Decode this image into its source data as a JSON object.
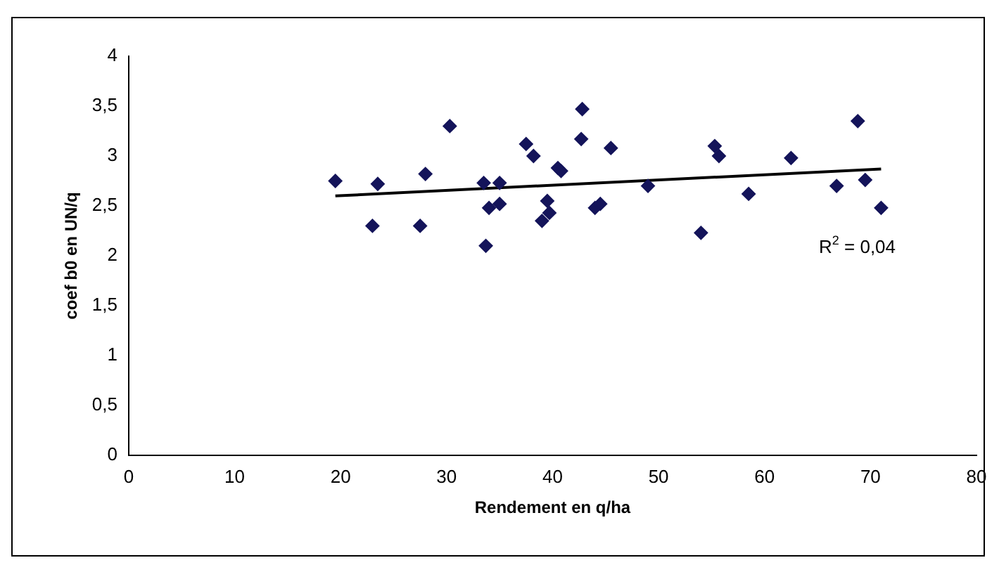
{
  "chart_data": {
    "type": "scatter",
    "xlabel": "Rendement en q/ha",
    "ylabel": "coef b0 en UN/q",
    "marker": "diamond",
    "xlim": [
      0,
      80
    ],
    "xticks": [
      0,
      10,
      20,
      30,
      40,
      50,
      60,
      70,
      80
    ],
    "ylim": [
      0,
      4
    ],
    "yticks": [
      0,
      {
        "value": 0.5,
        "label": "0,5"
      },
      1,
      {
        "value": 1.5,
        "label": "1,5"
      },
      2,
      {
        "value": 2.5,
        "label": "2,5"
      },
      3,
      {
        "value": 3.5,
        "label": "3,5"
      },
      4
    ],
    "series": [
      {
        "color": "#14145a",
        "x": [
          19.5,
          23.5,
          23,
          28,
          27.5,
          30.3,
          33.5,
          34,
          33.7,
          35,
          35,
          37.5,
          38.2,
          39,
          39.5,
          39.7,
          40.5,
          40.8,
          42.8,
          42.7,
          44,
          44.5,
          45.5,
          49,
          54,
          55.3,
          55.7,
          58.5,
          62.5,
          66.8,
          68.8,
          69.5,
          71
        ],
        "values": [
          2.75,
          2.72,
          2.3,
          2.82,
          2.3,
          3.3,
          2.73,
          2.48,
          2.1,
          2.73,
          2.52,
          3.12,
          3.0,
          2.35,
          2.55,
          2.43,
          2.88,
          2.85,
          3.47,
          3.17,
          2.48,
          2.52,
          3.08,
          2.7,
          2.23,
          3.1,
          3.0,
          2.62,
          2.98,
          2.7,
          3.35,
          2.76,
          2.48
        ]
      },
      {
        "type": "line",
        "color": "#000000",
        "marker": "none",
        "x": [
          19.5,
          71
        ],
        "values": [
          2.6,
          2.87
        ]
      }
    ],
    "annotations": [
      "R$^{2}$ = 0,04"
    ]
  }
}
